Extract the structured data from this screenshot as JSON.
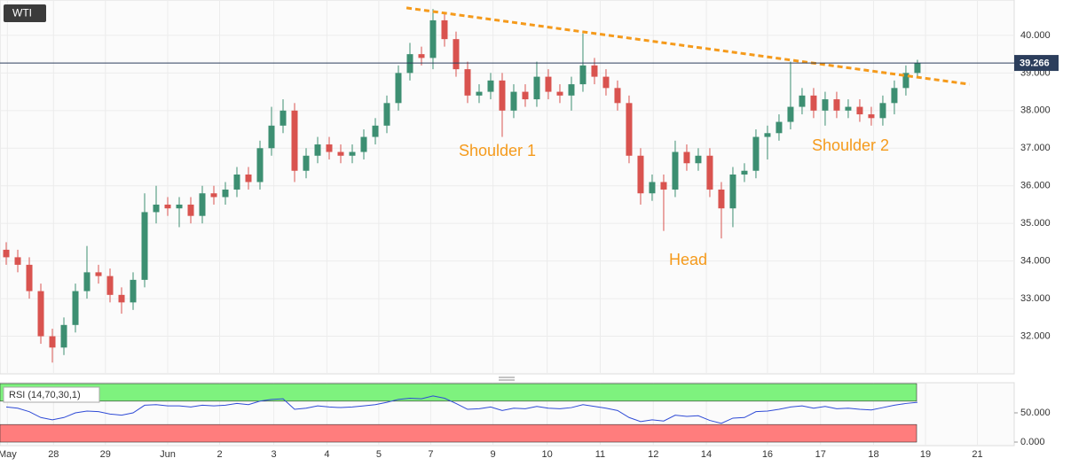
{
  "chart_data": [
    {
      "type": "candlestick",
      "title": "WTI",
      "up_color": "#3d8f72",
      "down_color": "#d9534f",
      "xlim": [
        -0.54,
        87.39
      ],
      "xticks": [
        {
          "value": 0.1,
          "label": "May"
        },
        {
          "value": 4.1,
          "label": "28"
        },
        {
          "value": 8.6,
          "label": "29"
        },
        {
          "value": 14.0,
          "label": "Jun"
        },
        {
          "value": 18.5,
          "label": "2"
        },
        {
          "value": 23.2,
          "label": "3"
        },
        {
          "value": 27.8,
          "label": "4"
        },
        {
          "value": 32.3,
          "label": "5"
        },
        {
          "value": 36.8,
          "label": "7"
        },
        {
          "value": 42.2,
          "label": "9"
        },
        {
          "value": 46.9,
          "label": "10"
        },
        {
          "value": 51.5,
          "label": "11"
        },
        {
          "value": 56.1,
          "label": "12"
        },
        {
          "value": 60.7,
          "label": "14"
        },
        {
          "value": 66.0,
          "label": "16"
        },
        {
          "value": 70.6,
          "label": "17"
        },
        {
          "value": 75.2,
          "label": "18"
        },
        {
          "value": 79.7,
          "label": "19"
        },
        {
          "value": 84.2,
          "label": "21"
        }
      ],
      "ylim": [
        31.0,
        40.94
      ],
      "yticks": [
        {
          "value": 32,
          "label": "32.000"
        },
        {
          "value": 33,
          "label": "33.000"
        },
        {
          "value": 34,
          "label": "34.000"
        },
        {
          "value": 35,
          "label": "35.000"
        },
        {
          "value": 36,
          "label": "36.000"
        },
        {
          "value": 37,
          "label": "37.000"
        },
        {
          "value": 38,
          "label": "38.000"
        },
        {
          "value": 39,
          "label": "39.000"
        },
        {
          "value": 40,
          "label": "40.000"
        }
      ],
      "grid": true,
      "open": [
        34.3,
        34.1,
        33.9,
        33.2,
        32.0,
        31.7,
        32.3,
        33.2,
        33.7,
        33.6,
        33.1,
        32.9,
        33.5,
        35.3,
        35.5,
        35.4,
        35.5,
        35.2,
        35.8,
        35.7,
        35.9,
        36.3,
        36.1,
        37.0,
        37.6,
        38.0,
        36.4,
        36.8,
        37.1,
        36.9,
        36.8,
        36.9,
        37.3,
        37.6,
        38.2,
        39.0,
        39.5,
        39.4,
        40.4,
        39.9,
        39.1,
        38.4,
        38.5,
        38.8,
        38.0,
        38.5,
        38.3,
        38.9,
        38.5,
        38.4,
        38.7,
        39.2,
        38.9,
        38.6,
        38.2,
        36.8,
        35.8,
        36.1,
        35.9,
        36.9,
        36.6,
        36.8,
        35.9,
        35.4,
        36.3,
        36.4,
        37.3,
        37.4,
        37.7,
        38.1,
        38.4,
        38.0,
        38.3,
        38.0,
        38.1,
        37.9,
        37.8,
        38.2,
        38.6,
        39.0
      ],
      "high": [
        34.5,
        34.3,
        34.1,
        33.4,
        32.2,
        32.5,
        33.4,
        34.4,
        33.9,
        33.8,
        33.3,
        33.7,
        35.8,
        36.0,
        35.7,
        35.7,
        35.7,
        36.0,
        36.0,
        36.1,
        36.5,
        36.5,
        37.2,
        38.1,
        38.3,
        38.2,
        37.0,
        37.3,
        37.3,
        37.1,
        37.1,
        37.5,
        37.8,
        38.4,
        39.2,
        39.8,
        39.7,
        40.7,
        40.6,
        40.1,
        39.3,
        38.7,
        39.0,
        39.0,
        38.7,
        38.7,
        39.3,
        39.1,
        38.7,
        38.9,
        40.05,
        39.4,
        39.1,
        38.8,
        38.4,
        37.0,
        36.3,
        36.3,
        37.2,
        37.1,
        37.0,
        37.0,
        36.1,
        36.5,
        36.6,
        37.5,
        37.6,
        37.9,
        39.3,
        38.6,
        38.6,
        38.5,
        38.5,
        38.3,
        38.3,
        38.1,
        38.4,
        38.8,
        39.2,
        39.35
      ],
      "low": [
        33.9,
        33.7,
        33.0,
        31.8,
        31.3,
        31.5,
        32.1,
        33.0,
        33.4,
        32.9,
        32.6,
        32.7,
        33.3,
        35.0,
        35.2,
        34.9,
        35.0,
        35.0,
        35.5,
        35.5,
        35.7,
        35.9,
        35.9,
        36.8,
        37.4,
        36.1,
        36.2,
        36.6,
        36.7,
        36.6,
        36.6,
        36.7,
        37.1,
        37.4,
        38.0,
        38.8,
        39.2,
        39.1,
        39.7,
        38.9,
        38.2,
        38.2,
        38.3,
        37.3,
        37.8,
        38.1,
        38.1,
        38.3,
        38.2,
        38.0,
        38.5,
        38.7,
        38.4,
        38.0,
        36.6,
        35.5,
        35.6,
        34.8,
        35.7,
        36.4,
        36.4,
        35.7,
        34.6,
        34.9,
        36.1,
        36.2,
        36.7,
        37.2,
        37.5,
        37.9,
        37.8,
        37.6,
        37.8,
        37.8,
        37.7,
        37.6,
        37.6,
        37.9,
        38.4,
        38.9
      ],
      "close": [
        34.1,
        33.9,
        33.2,
        32.0,
        31.7,
        32.3,
        33.2,
        33.7,
        33.6,
        33.1,
        32.9,
        33.5,
        35.3,
        35.5,
        35.4,
        35.5,
        35.2,
        35.8,
        35.7,
        35.9,
        36.3,
        36.1,
        37.0,
        37.6,
        38.0,
        36.4,
        36.8,
        37.1,
        36.9,
        36.8,
        36.9,
        37.3,
        37.6,
        38.2,
        39.0,
        39.5,
        39.4,
        40.4,
        39.9,
        39.1,
        38.4,
        38.5,
        38.8,
        38.0,
        38.5,
        38.3,
        38.9,
        38.5,
        38.4,
        38.7,
        39.2,
        38.9,
        38.6,
        38.2,
        36.8,
        35.8,
        36.1,
        35.9,
        36.9,
        36.6,
        36.8,
        35.9,
        35.4,
        36.3,
        36.4,
        37.3,
        37.4,
        37.7,
        38.1,
        38.4,
        38.0,
        38.3,
        38.0,
        38.1,
        37.9,
        37.8,
        38.2,
        38.6,
        39.0,
        39.266
      ],
      "trendline": {
        "x": [
          34.7,
          83.5
        ],
        "y": [
          40.73,
          38.7
        ],
        "color": "#f59a1b"
      },
      "annotations": [
        "Shoulder 1",
        "Head",
        "Shoulder 2"
      ],
      "annotation_color": "#f59a1b"
    },
    {
      "type": "line",
      "title": "RSI (14,70,30,1)",
      "ylim": [
        0,
        100
      ],
      "yticks": [
        {
          "value": 50,
          "label": "50.000"
        },
        {
          "value": 0,
          "label": "0.000"
        }
      ],
      "upper_band": [
        70,
        100
      ],
      "upper_color": "#7ef27e",
      "lower_band": [
        0,
        30
      ],
      "lower_color": "#ff7d7d",
      "series": [
        {
          "color": "#2f4bd6",
          "values": [
            60,
            58,
            52,
            42,
            38,
            42,
            50,
            53,
            52,
            48,
            46,
            50,
            63,
            64,
            62,
            62,
            60,
            63,
            62,
            63,
            66,
            64,
            70,
            73,
            74,
            56,
            58,
            62,
            60,
            59,
            60,
            62,
            64,
            68,
            73,
            75,
            74,
            79,
            75,
            66,
            56,
            57,
            60,
            54,
            58,
            57,
            61,
            58,
            57,
            59,
            64,
            61,
            58,
            54,
            42,
            35,
            38,
            36,
            46,
            44,
            45,
            37,
            32,
            41,
            42,
            52,
            53,
            56,
            60,
            62,
            58,
            61,
            57,
            58,
            56,
            55,
            59,
            63,
            66,
            68
          ]
        }
      ]
    }
  ]
}
